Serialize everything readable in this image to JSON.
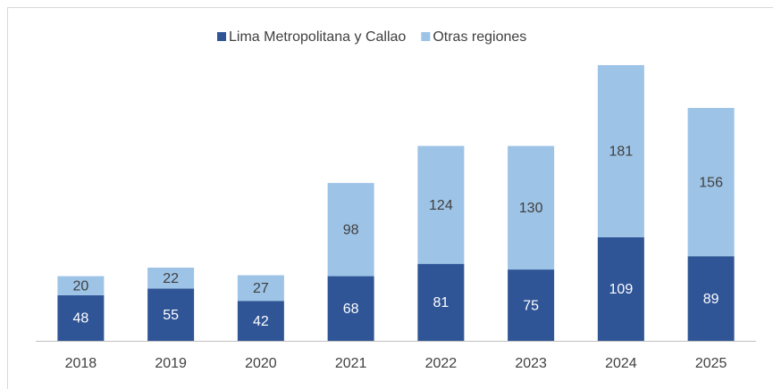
{
  "chart_data": {
    "type": "stacked_bar",
    "categories": [
      "2018",
      "2019",
      "2020",
      "2021",
      "2022",
      "2023",
      "2024",
      "2025"
    ],
    "series": [
      {
        "name": "Lima Metropolitana y Callao",
        "color": "#2f5597",
        "values": [
          48,
          55,
          42,
          68,
          81,
          75,
          109,
          89
        ]
      },
      {
        "name": "Otras regiones",
        "color": "#9dc3e6",
        "values": [
          20,
          22,
          27,
          98,
          124,
          130,
          181,
          156
        ]
      }
    ],
    "ylim": [
      0,
      290
    ],
    "legend": "top"
  }
}
